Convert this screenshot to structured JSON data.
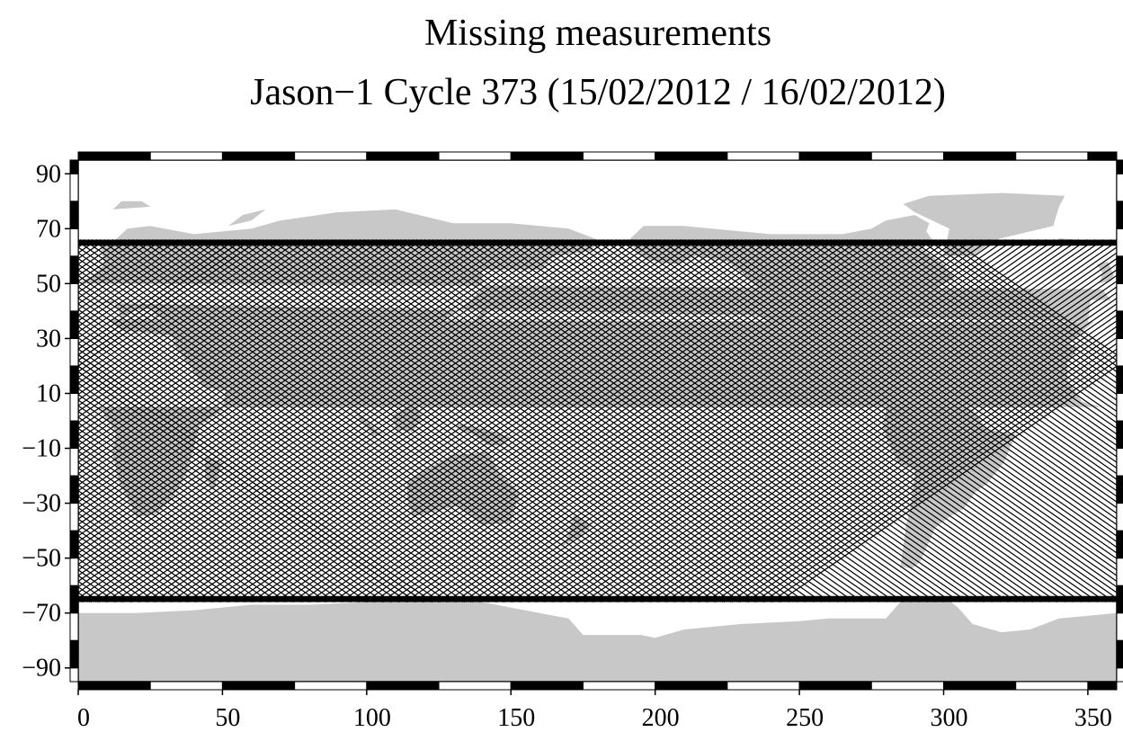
{
  "chart_data": {
    "type": "map",
    "title": "Missing measurements",
    "subtitle": "Jason−1 Cycle 373 (15/02/2012 / 16/02/2012)",
    "xlabel": "",
    "ylabel": "",
    "xlim": [
      0,
      360
    ],
    "ylim": [
      -95,
      95
    ],
    "x_ticks": [
      0,
      50,
      100,
      150,
      200,
      250,
      300,
      350
    ],
    "x_tick_labels": [
      "0",
      "50",
      "100",
      "150",
      "200",
      "250",
      "300",
      "350"
    ],
    "y_ticks": [
      90,
      70,
      50,
      30,
      10,
      -10,
      -30,
      -50,
      -70,
      -90
    ],
    "y_tick_labels": [
      "90",
      "70",
      "50",
      "30",
      "10",
      "−10",
      "−30",
      "−50",
      "−70",
      "−90"
    ],
    "frame_style": "alternating black/white bars every 25 units",
    "track_latitude_limit": 66,
    "track_count_per_direction": 128,
    "track_longitude_span": 180,
    "grid": false,
    "legend": "none",
    "colors": {
      "land": "#c8c8c8",
      "tracks": "#000000",
      "background": "#ffffff",
      "frame": "#000000"
    }
  }
}
